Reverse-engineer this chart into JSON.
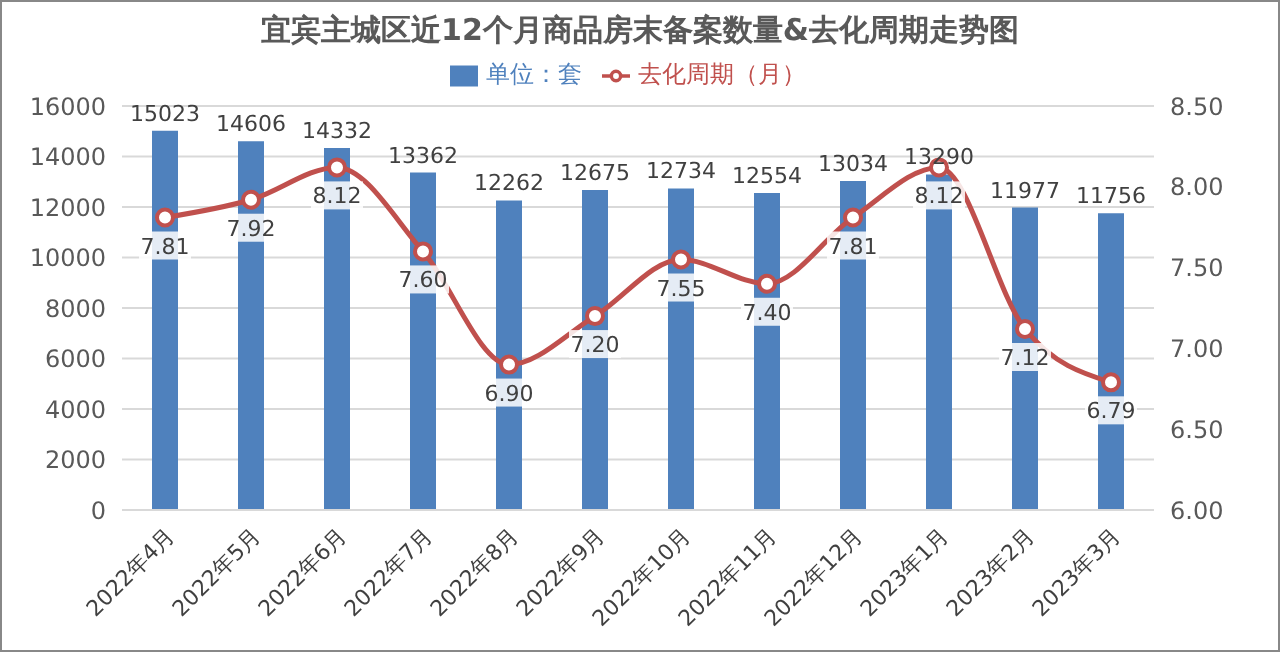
{
  "chart_data": {
    "type": "bar",
    "title": "宜宾主城区近12个月商品房末备案数量&去化周期走势图",
    "categories": [
      "2022年4月",
      "2022年5月",
      "2022年6月",
      "2022年7月",
      "2022年8月",
      "2022年9月",
      "2022年10月",
      "2022年11月",
      "2022年12月",
      "2023年1月",
      "2023年2月",
      "2023年3月"
    ],
    "series": [
      {
        "name": "单位：套",
        "color": "#4f81bd",
        "values": [
          15023,
          14606,
          14332,
          13362,
          12262,
          12675,
          12734,
          12554,
          13034,
          13290,
          11977,
          11756
        ],
        "value_labels": [
          "15023",
          "14606",
          "14332",
          "13362",
          "12262",
          "12675",
          "12734",
          "12554",
          "13034",
          "13290",
          "11977",
          "11756"
        ]
      },
      {
        "name": "去化周期（月）",
        "type": "line",
        "axis": "y2",
        "color": "#c0504d",
        "values": [
          7.81,
          7.92,
          8.12,
          7.6,
          6.9,
          7.2,
          7.55,
          7.4,
          7.81,
          8.12,
          7.12,
          6.79
        ],
        "value_labels": [
          "7.81",
          "7.92",
          "8.12",
          "7.60",
          "6.90",
          "7.20",
          "7.55",
          "7.40",
          "7.81",
          "8.12",
          "7.12",
          "6.79"
        ]
      }
    ],
    "ylim": [
      0,
      16000
    ],
    "yticks": [
      0,
      2000,
      4000,
      6000,
      8000,
      10000,
      12000,
      14000,
      16000
    ],
    "y2lim": [
      6,
      8.5
    ],
    "y2ticks": [
      {
        "value": 6,
        "label": "6.00"
      },
      {
        "value": 6.5,
        "label": "6.50"
      },
      {
        "value": 7,
        "label": "7.00"
      },
      {
        "value": 7.5,
        "label": "7.50"
      },
      {
        "value": 8,
        "label": "8.00"
      },
      {
        "value": 8.5,
        "label": "8.50"
      }
    ],
    "grid": "y",
    "legend": "top",
    "marker": "circle",
    "line_style": "solid"
  }
}
